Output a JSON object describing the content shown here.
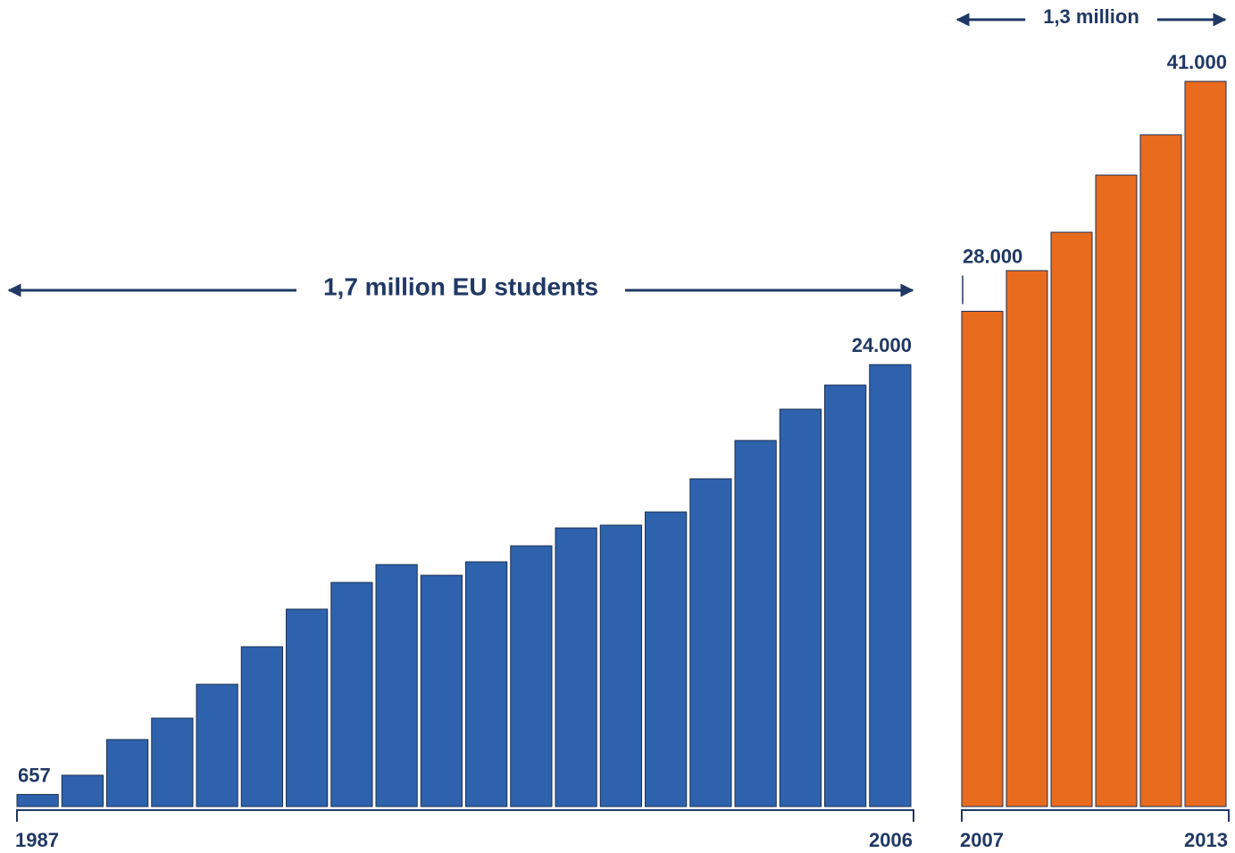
{
  "chart_data": [
    {
      "type": "bar",
      "annotation": "1,7 million EU students",
      "categories": [
        "1987",
        null,
        null,
        null,
        null,
        null,
        null,
        null,
        null,
        null,
        null,
        null,
        null,
        null,
        null,
        null,
        null,
        null,
        null,
        "2006"
      ],
      "values": [
        657,
        1700,
        3640,
        4800,
        6640,
        8680,
        10720,
        12170,
        13140,
        12560,
        13290,
        14160,
        15130,
        15280,
        16000,
        17800,
        19880,
        21580,
        22890,
        24000
      ],
      "value_labels": [
        "657",
        null,
        null,
        null,
        null,
        null,
        null,
        null,
        null,
        null,
        null,
        null,
        null,
        null,
        null,
        null,
        null,
        null,
        null,
        "24.000"
      ],
      "color": "#2e62ad",
      "ylim": [
        0,
        43800
      ]
    },
    {
      "type": "bar",
      "annotation": "1,3 million",
      "categories": [
        "2007",
        null,
        null,
        null,
        null,
        "2013"
      ],
      "values": [
        28000,
        30300,
        32470,
        35700,
        37980,
        41000
      ],
      "value_labels": [
        "28.000",
        null,
        null,
        null,
        null,
        "41.000"
      ],
      "color": "#e96b1e",
      "ylim": [
        0,
        45600
      ]
    }
  ]
}
